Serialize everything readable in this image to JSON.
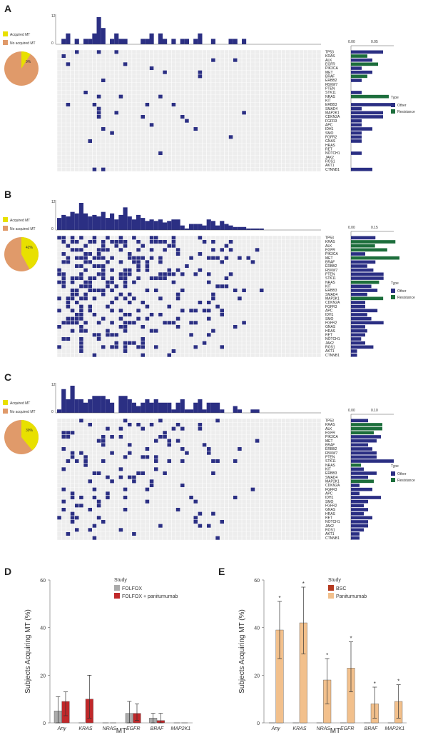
{
  "panels": [
    {
      "label": "A",
      "legend_pie": [
        {
          "label": "Acquired MT",
          "color": "#e8e000"
        },
        {
          "label": "No acquired MT",
          "color": "#e09a6a"
        }
      ],
      "pie_text": "9%",
      "pie_fraction": 0.09,
      "top_axis_max": "12",
      "top_axis_min": "0",
      "side_axis_labels": [
        "0.00",
        "0.05"
      ],
      "type_legend": {
        "title": "Type",
        "items": [
          {
            "label": "Other",
            "color": "#2b2f83"
          },
          {
            "label": "Resistance",
            "color": "#1d6e3c"
          }
        ]
      }
    },
    {
      "label": "B",
      "legend_pie": [
        {
          "label": "Acquired MT",
          "color": "#e8e000"
        },
        {
          "label": "No acquired MT",
          "color": "#e09a6a"
        }
      ],
      "pie_text": "42%",
      "pie_fraction": 0.42,
      "top_axis_max": "12",
      "top_axis_min": "0",
      "side_axis_labels": [
        "0.00",
        "0.15"
      ],
      "type_legend": {
        "title": "Type",
        "items": [
          {
            "label": "Other",
            "color": "#2b2f83"
          },
          {
            "label": "Resistance",
            "color": "#1d6e3c"
          }
        ]
      }
    },
    {
      "label": "C",
      "legend_pie": [
        {
          "label": "Acquired MT",
          "color": "#e8e000"
        },
        {
          "label": "No acquired MT",
          "color": "#e09a6a"
        }
      ],
      "pie_text": "39%",
      "pie_fraction": 0.39,
      "top_axis_max": "12",
      "top_axis_min": "0",
      "side_axis_labels": [
        "0.00",
        "0.10"
      ],
      "type_legend": {
        "title": "Type",
        "items": [
          {
            "label": "Other",
            "color": "#2b2f83"
          },
          {
            "label": "Resistance",
            "color": "#1d6e3c"
          }
        ]
      }
    }
  ],
  "genes": [
    "TP53",
    "KRAS",
    "ALK",
    "EGFR",
    "PIK3CA",
    "MET",
    "BRAF",
    "ERBB2",
    "FBXW7",
    "PTEN",
    "STK11",
    "NRAS",
    "KIT",
    "ERBB3",
    "SMAD4",
    "MAP2K1",
    "CDKN2A",
    "FGFR3",
    "APC",
    "IDH1",
    "SMO",
    "FGFR2",
    "GNAS",
    "HRAS",
    "RET",
    "NOTCH1",
    "JAK2",
    "ROS1",
    "AKT1",
    "CTNNB1"
  ],
  "gene_colors": {
    "other": "#2b2f83",
    "resistance": "#1d6e3c"
  },
  "chart_data": [
    {
      "type": "bar",
      "panel": "D",
      "categories": [
        "Any",
        "KRAS",
        "NRAS",
        "EGFR",
        "BRAF",
        "MAP2K1"
      ],
      "ylabel": "Subjects Acquiring MT (%)",
      "xlabel": "MT",
      "ylim": [
        0,
        60
      ],
      "yticks": [
        "0",
        "20",
        "40",
        "60"
      ],
      "legend": {
        "title": "Study",
        "placement": "top-right"
      },
      "series": [
        {
          "name": "FOLFOX",
          "color": "#aaaaaa",
          "values": [
            5,
            0,
            0,
            4,
            2,
            0
          ],
          "err_low": [
            0,
            0,
            0,
            0,
            0,
            0
          ],
          "err_high": [
            11,
            0,
            0,
            9,
            4,
            0
          ]
        },
        {
          "name": "FOLFOX + panitumumab",
          "color": "#c0282a",
          "values": [
            9,
            10,
            0,
            4,
            1,
            0
          ],
          "err_low": [
            3,
            2,
            0,
            1,
            0,
            0
          ],
          "err_high": [
            13,
            20,
            0,
            8,
            4,
            0
          ]
        }
      ]
    },
    {
      "type": "bar",
      "panel": "E",
      "categories": [
        "Any",
        "KRAS",
        "NRAS",
        "EGFR",
        "BRAF",
        "MAP2K1"
      ],
      "ylabel": "Subjects Acquiring MT (%)",
      "xlabel": "MT",
      "ylim": [
        0,
        60
      ],
      "yticks": [
        "0",
        "20",
        "40",
        "60"
      ],
      "legend": {
        "title": "Study",
        "placement": "top-right"
      },
      "significance_marker": "*",
      "series": [
        {
          "name": "BSC",
          "color": "#b53a20",
          "values": [
            0,
            0,
            0,
            0,
            0,
            0
          ],
          "err_low": [
            0,
            0,
            0,
            0,
            0,
            0
          ],
          "err_high": [
            0,
            0,
            0,
            0,
            0,
            0
          ]
        },
        {
          "name": "Panitumumab",
          "color": "#f2c08c",
          "values": [
            39,
            42,
            18,
            23,
            8,
            9
          ],
          "err_low": [
            27,
            29,
            8,
            13,
            2,
            2
          ],
          "err_high": [
            51,
            57,
            27,
            34,
            15,
            16
          ]
        }
      ]
    }
  ]
}
